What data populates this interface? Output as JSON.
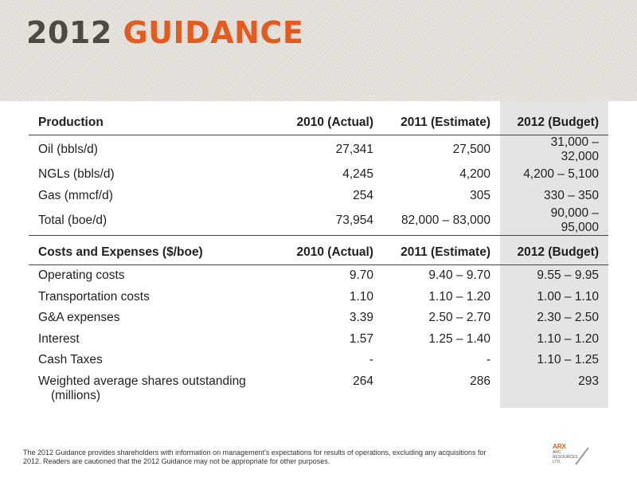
{
  "title": {
    "year": "2012",
    "word": "GUIDANCE"
  },
  "production": {
    "headers": [
      "Production",
      "2010 (Actual)",
      "2011 (Estimate)",
      "2012 (Budget)"
    ],
    "rows": [
      [
        "Oil (bbls/d)",
        "27,341",
        "27,500",
        "31,000 – 32,000"
      ],
      [
        "NGLs (bbls/d)",
        "4,245",
        "4,200",
        "4,200 – 5,100"
      ],
      [
        "Gas (mmcf/d)",
        "254",
        "305",
        "330 – 350"
      ],
      [
        "Total (boe/d)",
        "73,954",
        "82,000 – 83,000",
        "90,000 – 95,000"
      ]
    ]
  },
  "costs": {
    "headers": [
      "Costs and Expenses ($/boe)",
      "2010 (Actual)",
      "2011 (Estimate)",
      "2012 (Budget)"
    ],
    "rows": [
      [
        "Operating costs",
        "9.70",
        "9.40 – 9.70",
        "9.55 – 9.95"
      ],
      [
        "Transportation costs",
        "1.10",
        "1.10 – 1.20",
        "1.00 – 1.10"
      ],
      [
        "G&A expenses",
        "3.39",
        "2.50 – 2.70",
        "2.30 – 2.50"
      ],
      [
        "Interest",
        "1.57",
        "1.25 – 1.40",
        "1.10 – 1.20"
      ],
      [
        "Cash Taxes",
        "-",
        "-",
        "1.10 – 1.25"
      ]
    ],
    "last_row": {
      "label_line1": "Weighted average shares  outstanding",
      "label_line2": "(millions)",
      "values": [
        "264",
        "286",
        "293"
      ]
    }
  },
  "footnote": "The 2012 Guidance provides shareholders with information on management's expectations for results of operations, excluding any acquisitions for 2012. Readers are cautioned that the 2012 Guidance may not be appropriate for other purposes.",
  "logo": {
    "brand": "ARX",
    "line1": "ARC",
    "line2": "RESOURCES",
    "line3": "LTD."
  },
  "colors": {
    "accent": "#e35b1e",
    "title_dark": "#4b4b43",
    "budget_shade": "#e4e4e4"
  }
}
